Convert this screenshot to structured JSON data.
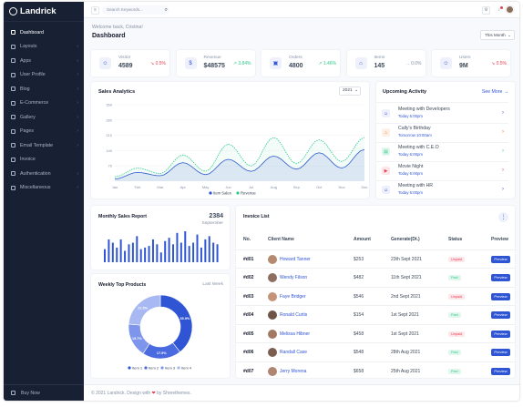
{
  "brand": {
    "name": "Landrick"
  },
  "sidebar": {
    "items": [
      {
        "label": "Dashboard",
        "icon": "dashboard-icon",
        "has_children": false
      },
      {
        "label": "Layouts",
        "icon": "layouts-icon",
        "has_children": true
      },
      {
        "label": "Apps",
        "icon": "apps-icon",
        "has_children": true
      },
      {
        "label": "User Profile",
        "icon": "user-icon",
        "has_children": true
      },
      {
        "label": "Blog",
        "icon": "blog-icon",
        "has_children": true
      },
      {
        "label": "E-Commerce",
        "icon": "cart-icon",
        "has_children": true
      },
      {
        "label": "Gallery",
        "icon": "gallery-icon",
        "has_children": true
      },
      {
        "label": "Pages",
        "icon": "pages-icon",
        "has_children": true
      },
      {
        "label": "Email Template",
        "icon": "email-icon",
        "has_children": true
      },
      {
        "label": "Invoice",
        "icon": "invoice-icon",
        "has_children": false
      },
      {
        "label": "Authentication",
        "icon": "lock-icon",
        "has_children": true
      },
      {
        "label": "Miscellaneous",
        "icon": "misc-icon",
        "has_children": true
      }
    ],
    "footer": {
      "label": "Buy Now"
    }
  },
  "topbar": {
    "search_placeholder": "Search Keywords..."
  },
  "header": {
    "welcome": "Welcome back, Cristina!",
    "title": "Dashboard",
    "period": "This Month"
  },
  "stats": [
    {
      "label": "Visitor",
      "value": "4589",
      "change": "0.5%",
      "trend": "down",
      "icon": "user-outline-icon"
    },
    {
      "label": "Revenue",
      "value": "$48575",
      "change": "3.84%",
      "trend": "up",
      "icon": "dollar-icon"
    },
    {
      "label": "Orders",
      "value": "4800",
      "change": "1.46%",
      "trend": "up",
      "icon": "shopping-bag-icon"
    },
    {
      "label": "Items",
      "value": "145",
      "change": "0.0%",
      "trend": "flat",
      "icon": "store-icon"
    },
    {
      "label": "Users",
      "value": "9M",
      "change": "0.5%",
      "trend": "down",
      "icon": "users-icon"
    }
  ],
  "sales_analytics": {
    "title": "Sales Analytics",
    "year": "2021"
  },
  "chart_data": [
    {
      "type": "line",
      "title": "Sales Analytics",
      "x": [
        "Jan",
        "Feb",
        "Mar",
        "Apr",
        "May",
        "Jun",
        "Jul",
        "Aug",
        "Sep",
        "Oct",
        "Nov",
        "Dec"
      ],
      "y_ticks": [
        70,
        140,
        210,
        280,
        350
      ],
      "ylim": [
        0,
        350
      ],
      "series": [
        {
          "name": "Item Sales",
          "color": "#2f55d4",
          "values": [
            10,
            40,
            25,
            85,
            30,
            100,
            45,
            115,
            55,
            130,
            60,
            145
          ]
        },
        {
          "name": "Revenue",
          "color": "#2eca8b",
          "values": [
            20,
            60,
            35,
            120,
            45,
            170,
            70,
            200,
            80,
            190,
            90,
            200
          ]
        }
      ],
      "legend": "bottom"
    },
    {
      "type": "bar",
      "title": "Monthly Sales Report",
      "values": [
        40,
        70,
        60,
        45,
        70,
        35,
        55,
        60,
        80,
        40,
        45,
        50,
        70,
        55,
        30,
        65,
        75,
        55,
        90,
        60,
        95,
        50,
        60,
        85,
        45,
        70,
        80,
        60,
        55
      ],
      "color": "#2f55d4"
    },
    {
      "type": "pie",
      "title": "Weekly Top Products",
      "donut": true,
      "categories": [
        "Item 1",
        "Item 2",
        "Item 3",
        "Item 4"
      ],
      "values": [
        35.9,
        17.9,
        15.7,
        21.5
      ],
      "colors": [
        "#2f55d4",
        "#4a6be0",
        "#7d95eb",
        "#a8b8f2"
      ]
    }
  ],
  "monthly_report": {
    "title": "Monthly Sales Report",
    "value": "2384",
    "period": "September"
  },
  "weekly_products": {
    "title": "Weekly Top Products",
    "link": "Last Week",
    "labels": [
      "35.9%",
      "17.9%",
      "15.7%",
      "21.5%"
    ]
  },
  "activity": {
    "title": "Upcoming Activity",
    "link": "See More",
    "items": [
      {
        "title": "Meeting with Developers",
        "date": "Today 6:00pm",
        "icon": "users-icon",
        "icon_color": "#2f55d4",
        "bg": "#eef1fb",
        "arrow_color": "#2f55d4"
      },
      {
        "title": "Cally's Birthday",
        "date": "Tomorrow 10:00am",
        "icon": "cake-icon",
        "icon_color": "#f17425",
        "bg": "#fdf0e7",
        "arrow_color": "#f17425"
      },
      {
        "title": "Meeting with C.E.O",
        "date": "Today 6:00pm",
        "icon": "briefcase-icon",
        "icon_color": "#2eca8b",
        "bg": "#e1f6ec",
        "arrow_color": "#2eca8b"
      },
      {
        "title": "Movie Night",
        "date": "Today 6:00pm",
        "icon": "film-icon",
        "icon_color": "#e43f52",
        "bg": "#fde6e9",
        "arrow_color": "#e43f52"
      },
      {
        "title": "Meeting with HR",
        "date": "Today 6:00pm",
        "icon": "users-icon",
        "icon_color": "#2f55d4",
        "bg": "#eef1fb",
        "arrow_color": "#2f55d4"
      }
    ]
  },
  "invoice": {
    "title": "Invoice List",
    "columns": [
      "No.",
      "Client Name",
      "Amount",
      "Generate(Dt.)",
      "Status",
      "Preview"
    ],
    "rows": [
      {
        "no": "#d01",
        "client": "Howard Tanner",
        "amount": "$253",
        "date": "23th Sept 2021",
        "status": "Unpaid",
        "preview": "Preview",
        "avatar": "#b48a70"
      },
      {
        "no": "#d02",
        "client": "Wendy Filson",
        "amount": "$482",
        "date": "11th Sept 2021",
        "status": "Paid",
        "preview": "Preview",
        "avatar": "#8d6e5f"
      },
      {
        "no": "#d03",
        "client": "Faye Bridger",
        "amount": "$546",
        "date": "2nd Sept 2021",
        "status": "Unpaid",
        "preview": "Preview",
        "avatar": "#c4937a"
      },
      {
        "no": "#d04",
        "client": "Ronald Curtis",
        "amount": "$154",
        "date": "1st Sept 2021",
        "status": "Paid",
        "preview": "Preview",
        "avatar": "#6f5547"
      },
      {
        "no": "#d05",
        "client": "Melissa Hibner",
        "amount": "$458",
        "date": "1st Sept 2021",
        "status": "Unpaid",
        "preview": "Preview",
        "avatar": "#a27963"
      },
      {
        "no": "#d06",
        "client": "Randall Case",
        "amount": "$548",
        "date": "28th Aug 2021",
        "status": "Paid",
        "preview": "Preview",
        "avatar": "#7c5e50"
      },
      {
        "no": "#d07",
        "client": "Jerry Morena",
        "amount": "$658",
        "date": "25th Aug 2021",
        "status": "Paid",
        "preview": "Preview",
        "avatar": "#b08672"
      }
    ]
  },
  "footer": {
    "text_before": "© 2021 Landrick. Design with",
    "heart": "❤",
    "text_after": "by Shreethemes."
  }
}
